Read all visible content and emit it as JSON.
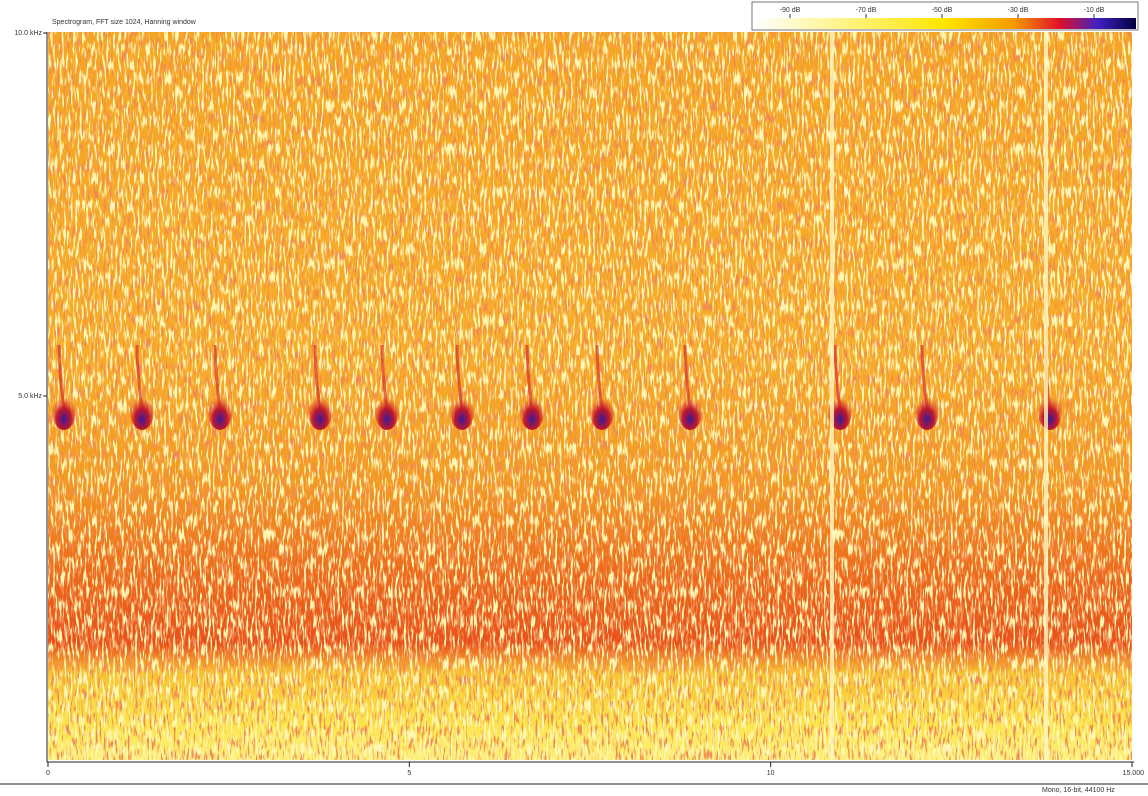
{
  "header": {
    "title": "Spectrogram, FFT size 1024, Hanning window"
  },
  "y_axis": {
    "labels": [
      "10.0 kHz",
      "5.0 kHz"
    ]
  },
  "x_axis": {
    "labels": [
      "0",
      "5",
      "10",
      "15.000"
    ]
  },
  "colorbar": {
    "labels": [
      "-90 dB",
      "-70 dB",
      "-50 dB",
      "-30 dB",
      "-10 dB"
    ]
  },
  "status": "Mono, 16-bit, 44100 Hz"
}
